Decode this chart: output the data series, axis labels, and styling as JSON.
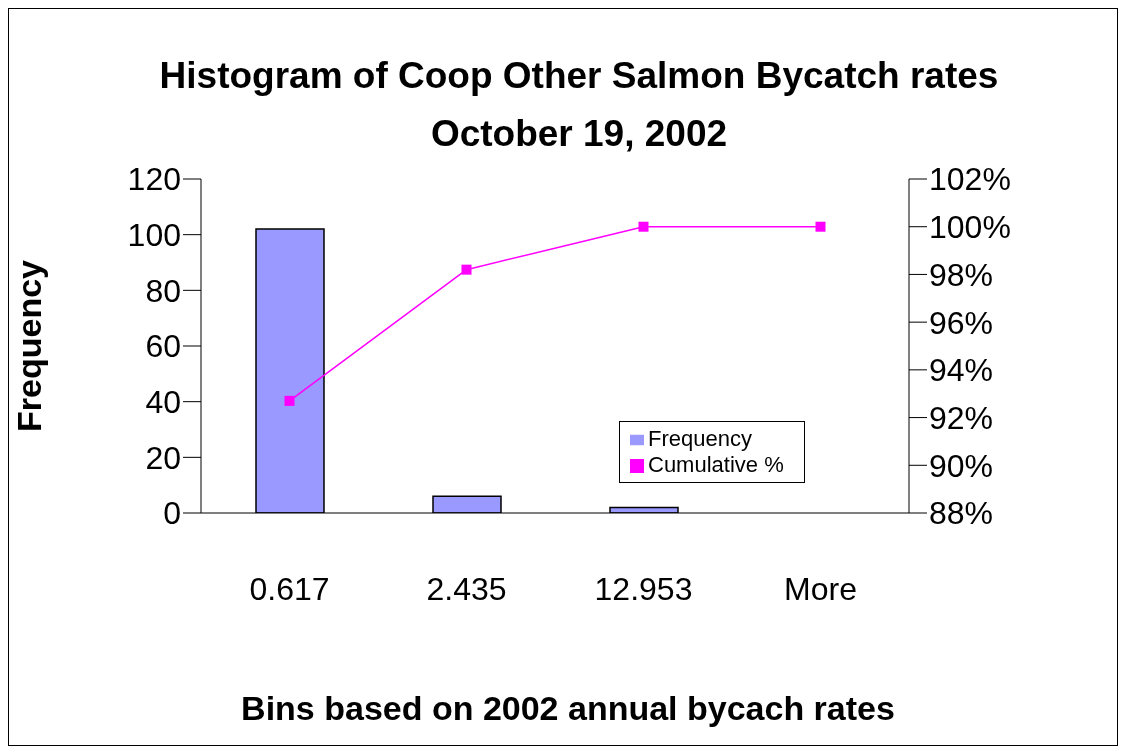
{
  "chart_data": {
    "type": "bar",
    "title": "Histogram of Coop Other Salmon Bycatch rates October 19, 2002",
    "xlabel": "Bins based on 2002 annual bycach rates",
    "ylabel": "Frequency",
    "categories": [
      "0.617",
      "2.435",
      "12.953",
      "More"
    ],
    "series": [
      {
        "name": "Frequency",
        "color": "#9999ff",
        "values": [
          102,
          6,
          2,
          0
        ]
      },
      {
        "name": "Cumulative %",
        "type": "line",
        "axis": "y2",
        "color": "#ff00ff",
        "marker": "square",
        "values": [
          92.7,
          98.2,
          100,
          100
        ]
      }
    ],
    "ylim": [
      0,
      120
    ],
    "yticks": [
      0,
      20,
      40,
      60,
      80,
      100,
      120
    ],
    "y2lim": [
      88,
      102
    ],
    "y2ticks": [
      {
        "value": 88,
        "label": "88%"
      },
      {
        "value": 90,
        "label": "90%"
      },
      {
        "value": 92,
        "label": "92%"
      },
      {
        "value": 94,
        "label": "94%"
      },
      {
        "value": 96,
        "label": "96%"
      },
      {
        "value": 98,
        "label": "98%"
      },
      {
        "value": 100,
        "label": "100%"
      },
      {
        "value": 102,
        "label": "102%"
      }
    ],
    "grid": false,
    "legend": "right"
  }
}
